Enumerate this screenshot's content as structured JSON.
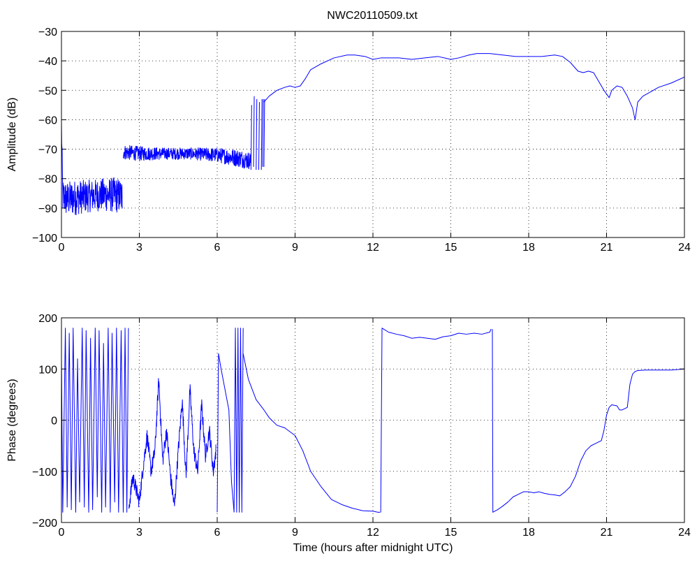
{
  "figure": {
    "title": "NWC20110509.txt",
    "background": "#ffffff",
    "line_color": "#0000ff",
    "grid_color": "#000000"
  },
  "chart_data": [
    {
      "type": "line",
      "title": "NWC20110509.txt",
      "xlabel": "",
      "ylabel": "Amplitude (dB)",
      "xlim": [
        0,
        24
      ],
      "ylim": [
        -100,
        -30
      ],
      "xticks": [
        0,
        3,
        6,
        9,
        12,
        15,
        18,
        21,
        24
      ],
      "yticks": [
        -100,
        -90,
        -80,
        -70,
        -60,
        -50,
        -40,
        -30
      ],
      "grid": true,
      "series": [
        {
          "color": "#0000ff",
          "style": "noisy-band",
          "segments": [
            {
              "x": [
                0.0,
                0.05,
                0.2,
                0.5,
                1.0,
                1.5,
                2.0,
                2.35
              ],
              "mid": [
                -62,
                -86,
                -87,
                -86.5,
                -86,
                -85.5,
                -85.5,
                -86
              ],
              "spread": [
                4,
                6,
                6,
                6,
                5.5,
                5.5,
                6,
                6
              ]
            },
            {
              "x": [
                2.38,
                3.0,
                4.0,
                5.0,
                6.0,
                6.8,
                7.3
              ],
              "mid": [
                -71,
                -71.5,
                -71.5,
                -71.5,
                -72,
                -73,
                -74
              ],
              "spread": [
                2.5,
                2.5,
                2,
                2,
                2.5,
                3,
                3
              ]
            }
          ]
        },
        {
          "color": "#0000ff",
          "style": "spikes",
          "x": [
            7.3,
            7.4,
            7.5,
            7.6,
            7.7,
            7.75,
            7.8
          ],
          "y_low": [
            -77,
            -76,
            -77,
            -77,
            -77,
            -76,
            -76
          ],
          "y_high": [
            -55,
            -52,
            -53,
            -54,
            -53,
            -53,
            -53
          ]
        },
        {
          "color": "#0000ff",
          "style": "smooth",
          "x": [
            7.8,
            8.0,
            8.3,
            8.6,
            8.8,
            9.0,
            9.2,
            9.4,
            9.6,
            9.8,
            10.0,
            10.5,
            11.0,
            11.3,
            11.7,
            12.0,
            12.3,
            12.6,
            13.0,
            13.5,
            14.0,
            14.5,
            15.0,
            15.3,
            15.7,
            16.0,
            16.5,
            17.0,
            17.5,
            18.0,
            18.5,
            19.0,
            19.3,
            19.6,
            19.9,
            20.1,
            20.3,
            20.5,
            20.7,
            20.9,
            21.1,
            21.2,
            21.4,
            21.6,
            21.8,
            22.0,
            22.1,
            22.2,
            22.4,
            22.7,
            23.0,
            23.5,
            24.0
          ],
          "y": [
            -54,
            -52,
            -50,
            -49,
            -48.5,
            -49,
            -48.5,
            -46,
            -43,
            -42,
            -41,
            -39,
            -38,
            -38,
            -38.5,
            -39.5,
            -39,
            -39,
            -39,
            -39.5,
            -39,
            -38.5,
            -39.5,
            -39,
            -38,
            -37.5,
            -37.5,
            -38,
            -38.5,
            -38.5,
            -38.5,
            -38,
            -38.5,
            -40.5,
            -43.5,
            -44,
            -43.5,
            -44,
            -47,
            -50,
            -52.5,
            -50,
            -48.5,
            -49,
            -52,
            -56,
            -60,
            -54,
            -52,
            -50.5,
            -49,
            -47.5,
            -45.5
          ]
        }
      ]
    },
    {
      "type": "line",
      "title": "",
      "xlabel": "Time (hours after midnight UTC)",
      "ylabel": "Phase (degrees)",
      "xlim": [
        0,
        24
      ],
      "ylim": [
        -200,
        200
      ],
      "xticks": [
        0,
        3,
        6,
        9,
        12,
        15,
        18,
        21,
        24
      ],
      "yticks": [
        -200,
        -100,
        0,
        100,
        200
      ],
      "grid": true,
      "series": [
        {
          "color": "#0000ff",
          "style": "wrapped-phase",
          "x": [
            0.0,
            0.05,
            0.15,
            0.22,
            0.3,
            0.38,
            0.45,
            0.55,
            0.62,
            0.7,
            0.8,
            0.88,
            0.95,
            1.05,
            1.12,
            1.2,
            1.3,
            1.38,
            1.45,
            1.55,
            1.62,
            1.7,
            1.8,
            1.88,
            1.95,
            2.05,
            2.12,
            2.2,
            2.3,
            2.38,
            2.45,
            2.52,
            2.58
          ],
          "y": [
            120,
            -180,
            180,
            -170,
            170,
            -175,
            180,
            -180,
            120,
            -160,
            180,
            -170,
            175,
            -180,
            160,
            -175,
            180,
            -150,
            175,
            -180,
            150,
            -170,
            180,
            -180,
            170,
            -160,
            180,
            -180,
            175,
            -180,
            180,
            -180,
            180
          ]
        },
        {
          "color": "#0000ff",
          "style": "noisy",
          "x": [
            2.6,
            2.75,
            2.9,
            3.0,
            3.15,
            3.3,
            3.45,
            3.6,
            3.75,
            3.9,
            4.05,
            4.2,
            4.35,
            4.5,
            4.65,
            4.8,
            4.95,
            5.1,
            5.25,
            5.4,
            5.55,
            5.7,
            5.85,
            5.95
          ],
          "y": [
            -170,
            -110,
            -140,
            -160,
            -90,
            -30,
            -100,
            -60,
            80,
            -80,
            -20,
            -110,
            -170,
            -60,
            40,
            -110,
            60,
            -60,
            -100,
            30,
            -70,
            -20,
            -100,
            -60
          ]
        },
        {
          "color": "#0000ff",
          "style": "smooth",
          "x": [
            6.0,
            6.05,
            6.15,
            6.3,
            6.45,
            6.55,
            6.65
          ],
          "y": [
            -180,
            130,
            100,
            60,
            20,
            -120,
            -180
          ]
        },
        {
          "color": "#0000ff",
          "style": "wrapped-phase",
          "x": [
            6.65,
            6.7,
            6.75,
            6.8,
            6.85,
            6.9,
            6.95,
            7.0
          ],
          "y": [
            -180,
            180,
            -180,
            180,
            -180,
            180,
            -180,
            180
          ]
        },
        {
          "color": "#0000ff",
          "style": "smooth",
          "x": [
            7.0,
            7.2,
            7.5,
            7.8,
            8.0,
            8.3,
            8.6,
            9.0,
            9.3,
            9.6,
            10.0,
            10.4,
            10.8,
            11.2,
            11.6,
            12.0,
            12.2,
            12.28
          ],
          "y": [
            130,
            80,
            40,
            20,
            5,
            -10,
            -15,
            -30,
            -60,
            -100,
            -130,
            -155,
            -165,
            -172,
            -177,
            -178,
            -180,
            -180
          ]
        },
        {
          "color": "#0000ff",
          "style": "smooth",
          "x": [
            12.3,
            12.35,
            12.6,
            12.9,
            13.2,
            13.5,
            13.8,
            14.1,
            14.4,
            14.7,
            15.0,
            15.3,
            15.6,
            15.9,
            16.2,
            16.5,
            16.55
          ],
          "y": [
            -180,
            180,
            172,
            168,
            165,
            160,
            162,
            160,
            158,
            163,
            165,
            170,
            168,
            170,
            168,
            172,
            178
          ]
        },
        {
          "color": "#0000ff",
          "style": "smooth",
          "x": [
            16.6,
            16.62,
            16.8,
            17.0,
            17.2,
            17.4,
            17.6,
            17.8,
            18.0,
            18.2,
            18.4,
            18.6,
            18.8,
            19.0,
            19.2,
            19.4,
            19.6,
            19.8,
            20.0,
            20.2,
            20.4,
            20.6,
            20.8,
            20.9,
            21.0,
            21.1,
            21.2,
            21.4,
            21.5,
            21.6,
            21.8,
            21.9,
            22.0,
            22.1,
            22.2,
            22.5,
            23.0,
            23.5,
            24.0
          ],
          "y": [
            178,
            -180,
            -175,
            -168,
            -160,
            -150,
            -145,
            -140,
            -140,
            -142,
            -140,
            -143,
            -145,
            -146,
            -148,
            -140,
            -130,
            -110,
            -80,
            -60,
            -50,
            -45,
            -40,
            -20,
            10,
            25,
            30,
            28,
            20,
            20,
            25,
            70,
            90,
            95,
            97,
            98,
            98,
            98,
            100
          ]
        }
      ]
    }
  ]
}
